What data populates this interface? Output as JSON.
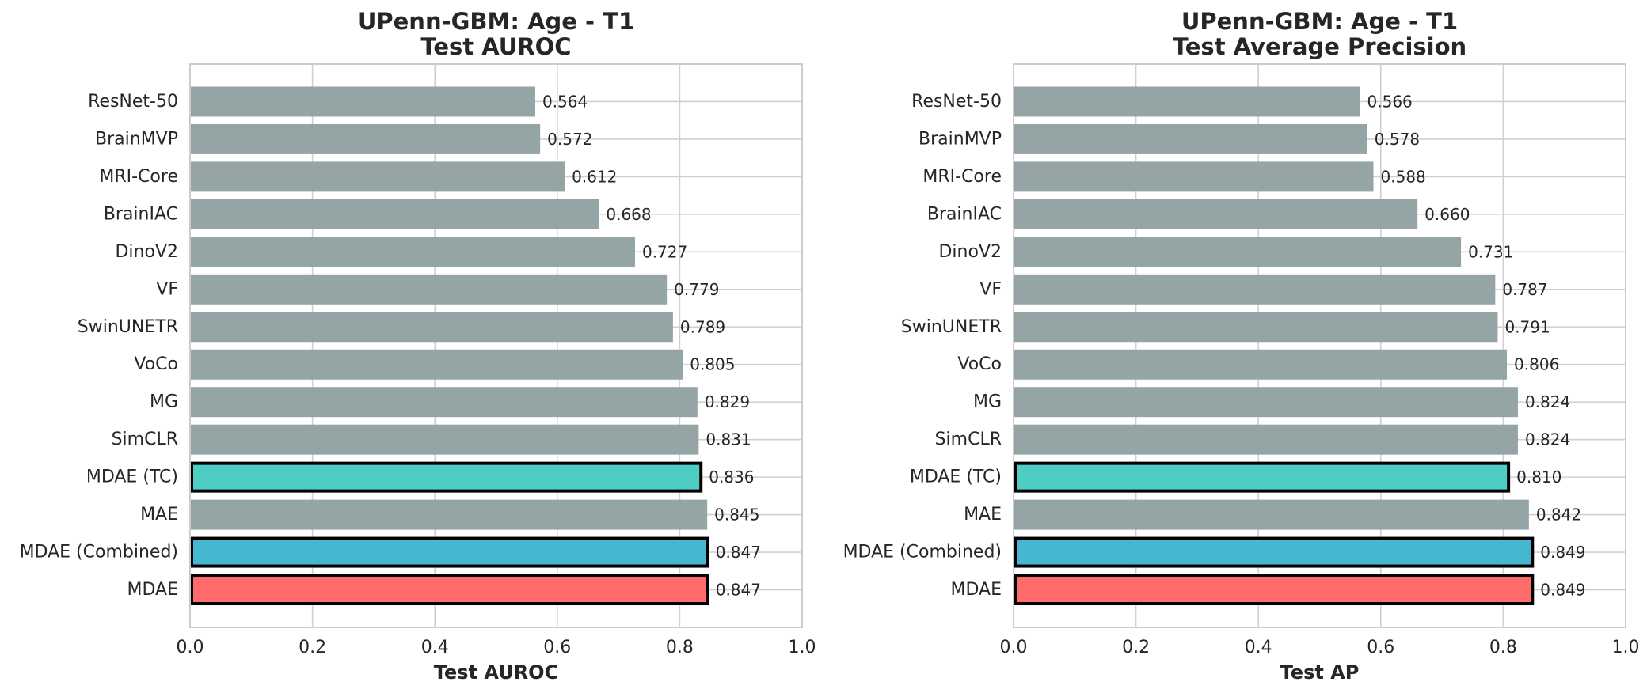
{
  "chart_data": [
    {
      "type": "bar",
      "orientation": "horizontal",
      "title": "UPenn-GBM: Age - T1",
      "subtitle": "Test AUROC",
      "xlabel": "Test AUROC",
      "ylabel": "",
      "xlim": [
        0,
        1
      ],
      "xticks": [
        "0.0",
        "0.2",
        "0.4",
        "0.6",
        "0.8",
        "1.0"
      ],
      "grid": true,
      "categories": [
        "ResNet-50",
        "BrainMVP",
        "MRI-Core",
        "BrainIAC",
        "DinoV2",
        "VF",
        "SwinUNETR",
        "VoCo",
        "MG",
        "SimCLR",
        "MDAE (TC)",
        "MAE",
        "MDAE (Combined)",
        "MDAE"
      ],
      "values": [
        0.564,
        0.572,
        0.612,
        0.668,
        0.727,
        0.779,
        0.789,
        0.805,
        0.829,
        0.831,
        0.836,
        0.845,
        0.847,
        0.847
      ],
      "value_labels": [
        "0.564",
        "0.572",
        "0.612",
        "0.668",
        "0.727",
        "0.779",
        "0.789",
        "0.805",
        "0.829",
        "0.831",
        "0.836",
        "0.845",
        "0.847",
        "0.847"
      ],
      "colors": [
        "#95a5a6",
        "#95a5a6",
        "#95a5a6",
        "#95a5a6",
        "#95a5a6",
        "#95a5a6",
        "#95a5a6",
        "#95a5a6",
        "#95a5a6",
        "#95a5a6",
        "#4ecdc4",
        "#95a5a6",
        "#45b7d1",
        "#ff6b6b"
      ],
      "highlighted": [
        false,
        false,
        false,
        false,
        false,
        false,
        false,
        false,
        false,
        false,
        true,
        false,
        true,
        true
      ]
    },
    {
      "type": "bar",
      "orientation": "horizontal",
      "title": "UPenn-GBM: Age - T1",
      "subtitle": "Test Average Precision",
      "xlabel": "Test AP",
      "ylabel": "",
      "xlim": [
        0,
        1
      ],
      "xticks": [
        "0.0",
        "0.2",
        "0.4",
        "0.6",
        "0.8",
        "1.0"
      ],
      "grid": true,
      "categories": [
        "ResNet-50",
        "BrainMVP",
        "MRI-Core",
        "BrainIAC",
        "DinoV2",
        "VF",
        "SwinUNETR",
        "VoCo",
        "MG",
        "SimCLR",
        "MDAE (TC)",
        "MAE",
        "MDAE (Combined)",
        "MDAE"
      ],
      "values": [
        0.566,
        0.578,
        0.588,
        0.66,
        0.731,
        0.787,
        0.791,
        0.806,
        0.824,
        0.824,
        0.81,
        0.842,
        0.849,
        0.849
      ],
      "value_labels": [
        "0.566",
        "0.578",
        "0.588",
        "0.660",
        "0.731",
        "0.787",
        "0.791",
        "0.806",
        "0.824",
        "0.824",
        "0.810",
        "0.842",
        "0.849",
        "0.849"
      ],
      "colors": [
        "#95a5a6",
        "#95a5a6",
        "#95a5a6",
        "#95a5a6",
        "#95a5a6",
        "#95a5a6",
        "#95a5a6",
        "#95a5a6",
        "#95a5a6",
        "#95a5a6",
        "#4ecdc4",
        "#95a5a6",
        "#45b7d1",
        "#ff6b6b"
      ],
      "highlighted": [
        false,
        false,
        false,
        false,
        false,
        false,
        false,
        false,
        false,
        false,
        true,
        false,
        true,
        true
      ]
    }
  ]
}
